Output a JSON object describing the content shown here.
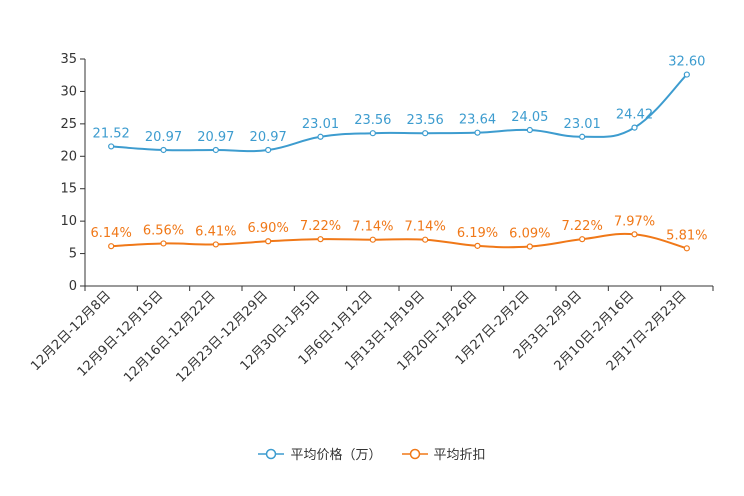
{
  "chart_data": {
    "type": "line",
    "title": "",
    "xlabel": "",
    "ylabel": "",
    "ylim": [
      0,
      35
    ],
    "yticks": [
      "0",
      "5",
      "10",
      "15",
      "20",
      "25",
      "30",
      "35"
    ],
    "categories": [
      "12月2日-12月8日",
      "12月9日-12月15日",
      "12月16日-12月22日",
      "12月23日-12月29日",
      "12月30日-1月5日",
      "1月6日-1月12日",
      "1月13日-1月19日",
      "1月20日-1月26日",
      "1月27日-2月2日",
      "2月3日-2月9日",
      "2月10日-2月16日",
      "2月17日-2月23日"
    ],
    "series": [
      {
        "name": "平均价格（万）",
        "color": "#3d9ccf",
        "values": [
          21.52,
          20.97,
          20.97,
          20.97,
          23.01,
          23.56,
          23.56,
          23.64,
          24.05,
          23.01,
          24.42,
          32.6
        ],
        "labels": [
          "21.52",
          "20.97",
          "20.97",
          "20.97",
          "23.01",
          "23.56",
          "23.56",
          "23.64",
          "24.05",
          "23.01",
          "24.42",
          "32.60"
        ]
      },
      {
        "name": "平均折扣",
        "color": "#f07818",
        "values": [
          6.14,
          6.56,
          6.41,
          6.9,
          7.22,
          7.14,
          7.14,
          6.19,
          6.09,
          7.22,
          7.97,
          5.81
        ],
        "labels": [
          "6.14%",
          "6.56%",
          "6.41%",
          "6.90%",
          "7.22%",
          "7.14%",
          "7.14%",
          "6.19%",
          "6.09%",
          "7.22%",
          "7.97%",
          "5.81%"
        ]
      }
    ],
    "legend": {
      "position": "bottom-center"
    },
    "grid": false
  }
}
